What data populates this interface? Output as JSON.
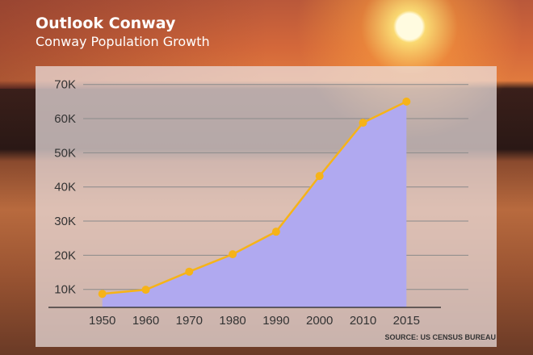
{
  "header": {
    "title": "Outlook Conway",
    "subtitle": "Conway Population Growth"
  },
  "chart_data": {
    "type": "area",
    "title": "Conway Population Growth",
    "categories": [
      "1950",
      "1960",
      "1970",
      "1980",
      "1990",
      "2000",
      "2010",
      "2015"
    ],
    "values": [
      8700,
      9900,
      15200,
      20300,
      26900,
      43200,
      58800,
      65000
    ],
    "yticks": [
      10000,
      20000,
      30000,
      40000,
      50000,
      60000,
      70000
    ],
    "ytick_labels": [
      "10K",
      "20K",
      "30K",
      "40K",
      "50K",
      "60K",
      "70K"
    ],
    "ylim": [
      4700,
      70000
    ],
    "xlabel": "",
    "ylabel": "",
    "grid": true,
    "source": "SOURCE: US CENSUS BUREAU",
    "colors": {
      "fill": "#b0a9f0",
      "line": "#f6b318",
      "grid": "#8a8a8a"
    }
  }
}
